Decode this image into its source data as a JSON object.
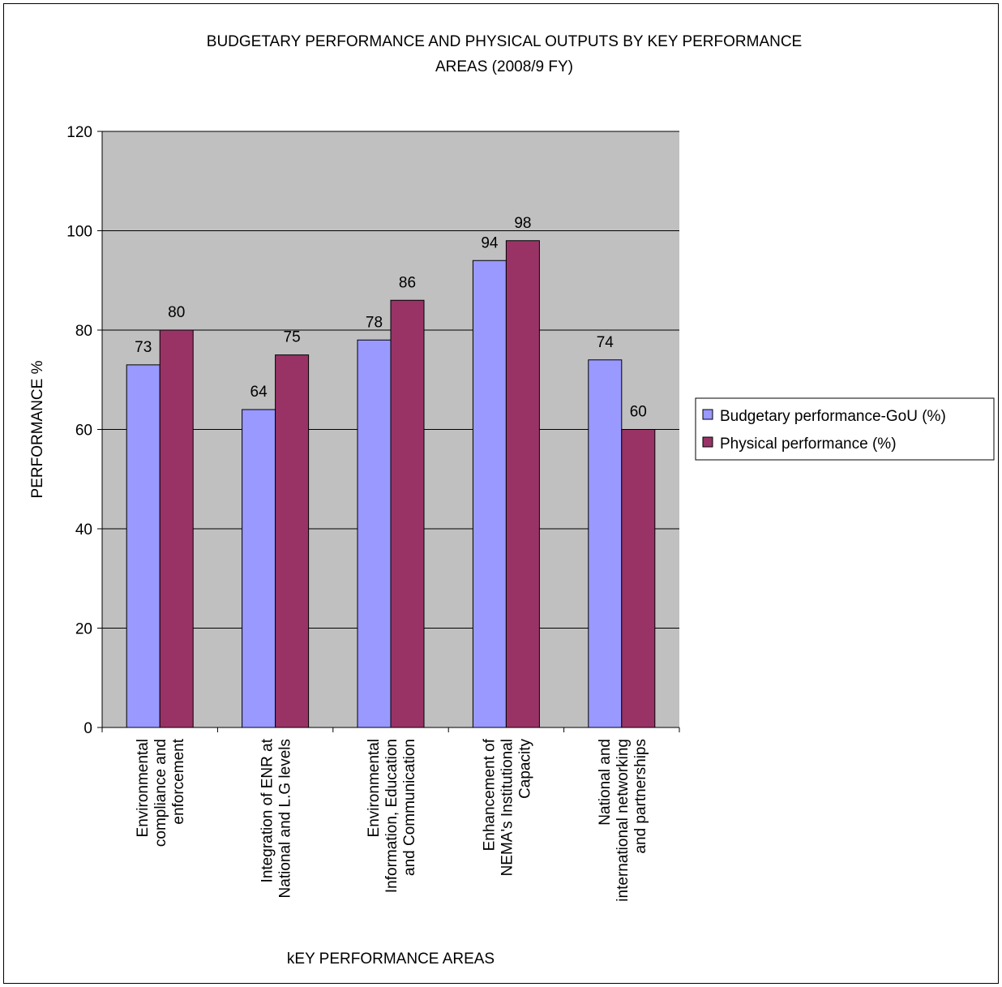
{
  "chart_data": {
    "type": "bar",
    "title": "BUDGETARY PERFORMANCE AND PHYSICAL OUTPUTS BY KEY PERFORMANCE AREAS (2008/9 FY)",
    "title_lines": [
      "BUDGETARY PERFORMANCE AND PHYSICAL OUTPUTS BY KEY PERFORMANCE",
      "AREAS (2008/9 FY)"
    ],
    "xlabel": "kEY PERFORMANCE AREAS",
    "ylabel": "PERFORMANCE %",
    "ylim": [
      0,
      120
    ],
    "yticks": [
      0,
      20,
      40,
      60,
      80,
      100,
      120
    ],
    "grid": true,
    "legend_position": "right",
    "categories": [
      [
        "Environmental",
        "compliance and",
        "enforcement"
      ],
      [
        "Integration of ENR at",
        "National and L.G levels"
      ],
      [
        "Environmental",
        "Information, Education",
        "and Communication"
      ],
      [
        "Enhancement of",
        "NEMA's Institutional",
        "Capacity"
      ],
      [
        "National and",
        "international networking",
        "and partnerships"
      ]
    ],
    "series": [
      {
        "name": "Budgetary performance-GoU (%)",
        "color": "#9999ff",
        "values": [
          73,
          64,
          78,
          94,
          74
        ]
      },
      {
        "name": "Physical performance (%)",
        "color": "#993366",
        "values": [
          80,
          75,
          86,
          98,
          60
        ]
      }
    ],
    "plot_background": "#c0c0c0"
  }
}
